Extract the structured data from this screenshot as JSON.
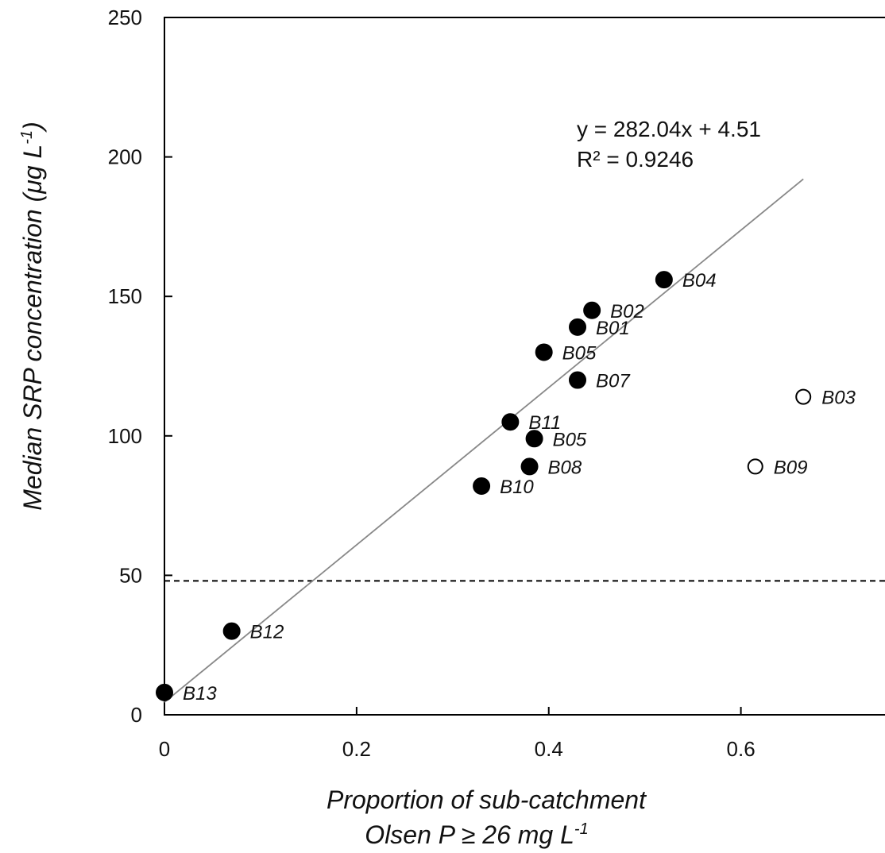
{
  "chart_data": {
    "type": "scatter",
    "title": "",
    "xlabel_line1": "Proportion of sub-catchment",
    "xlabel_line2": "Olsen P ≥ 26 mg L",
    "xlabel_sup": "-1",
    "ylabel": "Median SRP concentration (μg L",
    "ylabel_sup": "-1",
    "ylabel_close": ")",
    "xlim": [
      0,
      0.75
    ],
    "ylim": [
      0,
      250
    ],
    "xticks": [
      0,
      0.2,
      0.4,
      0.6
    ],
    "xtick_labels": [
      "0",
      "0.2",
      "0.4",
      "0.6"
    ],
    "yticks": [
      0,
      50,
      100,
      150,
      200,
      250
    ],
    "ytick_labels": [
      "0",
      "50",
      "100",
      "150",
      "200",
      "250"
    ],
    "grid": false,
    "series": [
      {
        "marker": "filled-circle",
        "color": "#000000",
        "points": [
          {
            "label": "B13",
            "x": 0.0,
            "y": 8
          },
          {
            "label": "B12",
            "x": 0.07,
            "y": 30
          },
          {
            "label": "B10",
            "x": 0.33,
            "y": 82
          },
          {
            "label": "B11",
            "x": 0.36,
            "y": 105
          },
          {
            "label": "B08",
            "x": 0.38,
            "y": 89
          },
          {
            "label": "B05",
            "x": 0.385,
            "y": 99
          },
          {
            "label": "B05",
            "x": 0.395,
            "y": 130
          },
          {
            "label": "B07",
            "x": 0.43,
            "y": 120
          },
          {
            "label": "B01",
            "x": 0.43,
            "y": 139
          },
          {
            "label": "B02",
            "x": 0.445,
            "y": 145
          },
          {
            "label": "B04",
            "x": 0.52,
            "y": 156
          }
        ]
      },
      {
        "marker": "open-circle",
        "color": "#000000",
        "points": [
          {
            "label": "B09",
            "x": 0.615,
            "y": 89
          },
          {
            "label": "B03",
            "x": 0.665,
            "y": 114
          }
        ]
      }
    ],
    "trendline": {
      "slope": 282.04,
      "intercept": 4.51,
      "x_range": [
        0.0,
        0.665
      ],
      "color": "#888888",
      "equation": "y = 282.04x + 4.51",
      "r2": "R² = 0.9246"
    },
    "reference_line": {
      "y": 48,
      "style": "dashed",
      "color": "#000000"
    }
  }
}
